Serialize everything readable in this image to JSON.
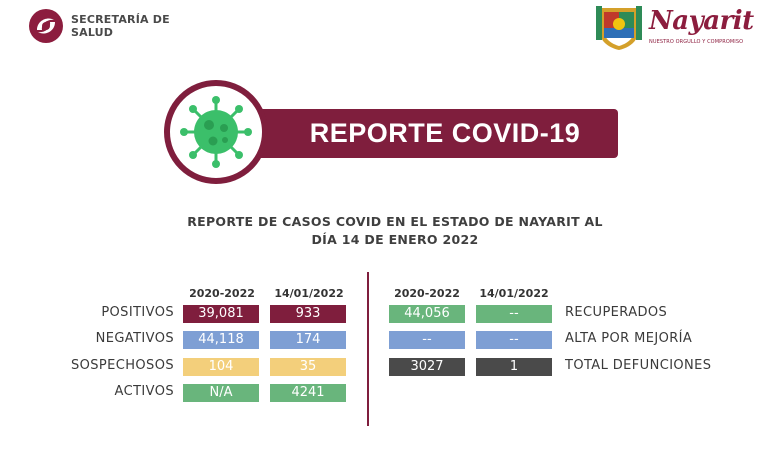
{
  "header": {
    "salud_line1": "SECRETARÍA DE",
    "salud_line2": "SALUD",
    "state_name": "Nayarit",
    "state_tagline": "NUESTRO ORGULLO Y COMPROMISO"
  },
  "banner": {
    "title": "REPORTE COVID-19"
  },
  "subtitle": {
    "line1": "REPORTE DE CASOS COVID EN EL ESTADO DE NAYARIT AL",
    "line2": "DÍA 14 DE ENERO 2022"
  },
  "left_table": {
    "col1": "2020-2022",
    "col2": "14/01/2022",
    "rows": [
      {
        "label": "POSITIVOS",
        "total": "39,081",
        "day": "933"
      },
      {
        "label": "NEGATIVOS",
        "total": "44,118",
        "day": "174"
      },
      {
        "label": "SOSPECHOSOS",
        "total": "104",
        "day": "35"
      },
      {
        "label": "ACTIVOS",
        "total": "N/A",
        "day": "4241"
      }
    ]
  },
  "right_table": {
    "col1": "2020-2022",
    "col2": "14/01/2022",
    "rows": [
      {
        "label": "RECUPERADOS",
        "total": "44,056",
        "day": "--"
      },
      {
        "label": "ALTA POR MEJORÍA",
        "total": "--",
        "day": "--"
      },
      {
        "label": "TOTAL DEFUNCIONES",
        "total": "3027",
        "day": "1"
      }
    ]
  },
  "colors": {
    "maroon": "#7f1e3d",
    "blue": "#7e9fd4",
    "yellow": "#f3cf7b",
    "green": "#69b57c",
    "dark": "#4a4a4a",
    "virus": "#3bbf6a"
  },
  "icons": [
    "salud-logo-icon",
    "nayarit-shield-icon",
    "virus-icon"
  ]
}
